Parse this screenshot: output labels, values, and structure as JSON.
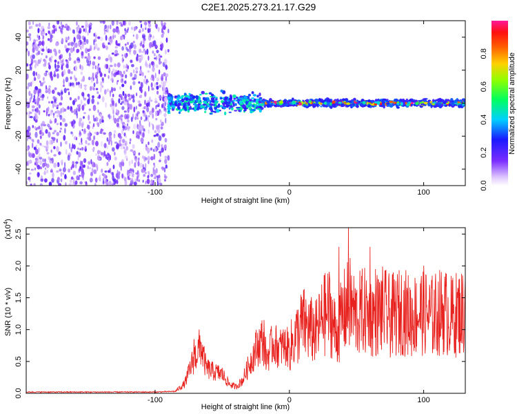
{
  "title": "C2E1.2025.273.21.17.G29",
  "chart_data": [
    {
      "type": "heatmap",
      "xlabel": "Height of straight line (km)",
      "ylabel": "Frequency (Hz)",
      "xlim": [
        -196,
        131
      ],
      "ylim": [
        -50,
        50
      ],
      "xticks": [
        -100,
        0,
        100
      ],
      "yticks": [
        -40,
        -20,
        0,
        20,
        40
      ],
      "colorbar": {
        "label": "Normalized spectral amplitude",
        "range": [
          0,
          1
        ],
        "ticks": [
          0.0,
          0.2,
          0.4,
          0.6,
          0.8
        ]
      },
      "regions": [
        {
          "x": [
            -196,
            -90
          ],
          "frequency": [
            -50,
            50
          ],
          "amplitude_range": [
            0.05,
            0.2
          ]
        },
        {
          "x": [
            -90,
            -20
          ],
          "frequency": [
            -8,
            8
          ],
          "amplitude_range": [
            0.2,
            0.5
          ]
        },
        {
          "x": [
            -20,
            131
          ],
          "frequency": [
            -3,
            3
          ],
          "amplitude_range": [
            0.2,
            1.0
          ]
        }
      ]
    },
    {
      "type": "line",
      "xlabel": "Height of straight line (km)",
      "ylabel": "SNR (10 * v/v)",
      "yscale_label": "(x10^4)",
      "yscale_base": "(x10",
      "yscale_exp": "4",
      "xlim": [
        -196,
        131
      ],
      "ylim": [
        0,
        2.6
      ],
      "xticks": [
        -100,
        0,
        100
      ],
      "yticks": [
        0.0,
        0.5,
        1.0,
        1.5,
        2.0,
        2.5
      ],
      "line_color": "#e8231f",
      "series": [
        {
          "x": [
            -196,
            -150,
            -100,
            -85,
            -78,
            -72,
            -66,
            -62,
            -58,
            -50,
            -45,
            -40,
            -35,
            -30,
            -25,
            -20,
            -17,
            -12,
            -8,
            -4,
            0,
            5,
            10,
            15,
            20,
            25,
            30,
            35,
            40,
            45,
            50,
            55,
            60,
            65,
            70,
            75,
            80,
            85,
            90,
            95,
            100,
            105,
            110,
            115,
            120,
            125,
            131
          ],
          "y": [
            0.02,
            0.02,
            0.02,
            0.03,
            0.15,
            0.5,
            0.75,
            0.4,
            0.35,
            0.3,
            0.15,
            0.1,
            0.2,
            0.45,
            0.7,
            0.85,
            0.55,
            0.8,
            0.7,
            0.75,
            0.7,
            0.9,
            1.1,
            1.0,
            0.95,
            1.2,
            1.3,
            0.9,
            1.25,
            1.4,
            1.2,
            1.3,
            1.2,
            1.25,
            1.3,
            1.2,
            1.25,
            1.3,
            1.2,
            1.25,
            1.3,
            1.2,
            1.25,
            1.3,
            1.2,
            1.25,
            1.3
          ],
          "peaks": [
            [
              -71,
              0.85
            ],
            [
              -19,
              1.15
            ],
            [
              26,
              1.85
            ],
            [
              37,
              2.3
            ],
            [
              44,
              2.62
            ],
            [
              60,
              2.3
            ],
            [
              64,
              1.95
            ],
            [
              98,
              1.75
            ],
            [
              131,
              1.8
            ]
          ]
        }
      ]
    }
  ]
}
